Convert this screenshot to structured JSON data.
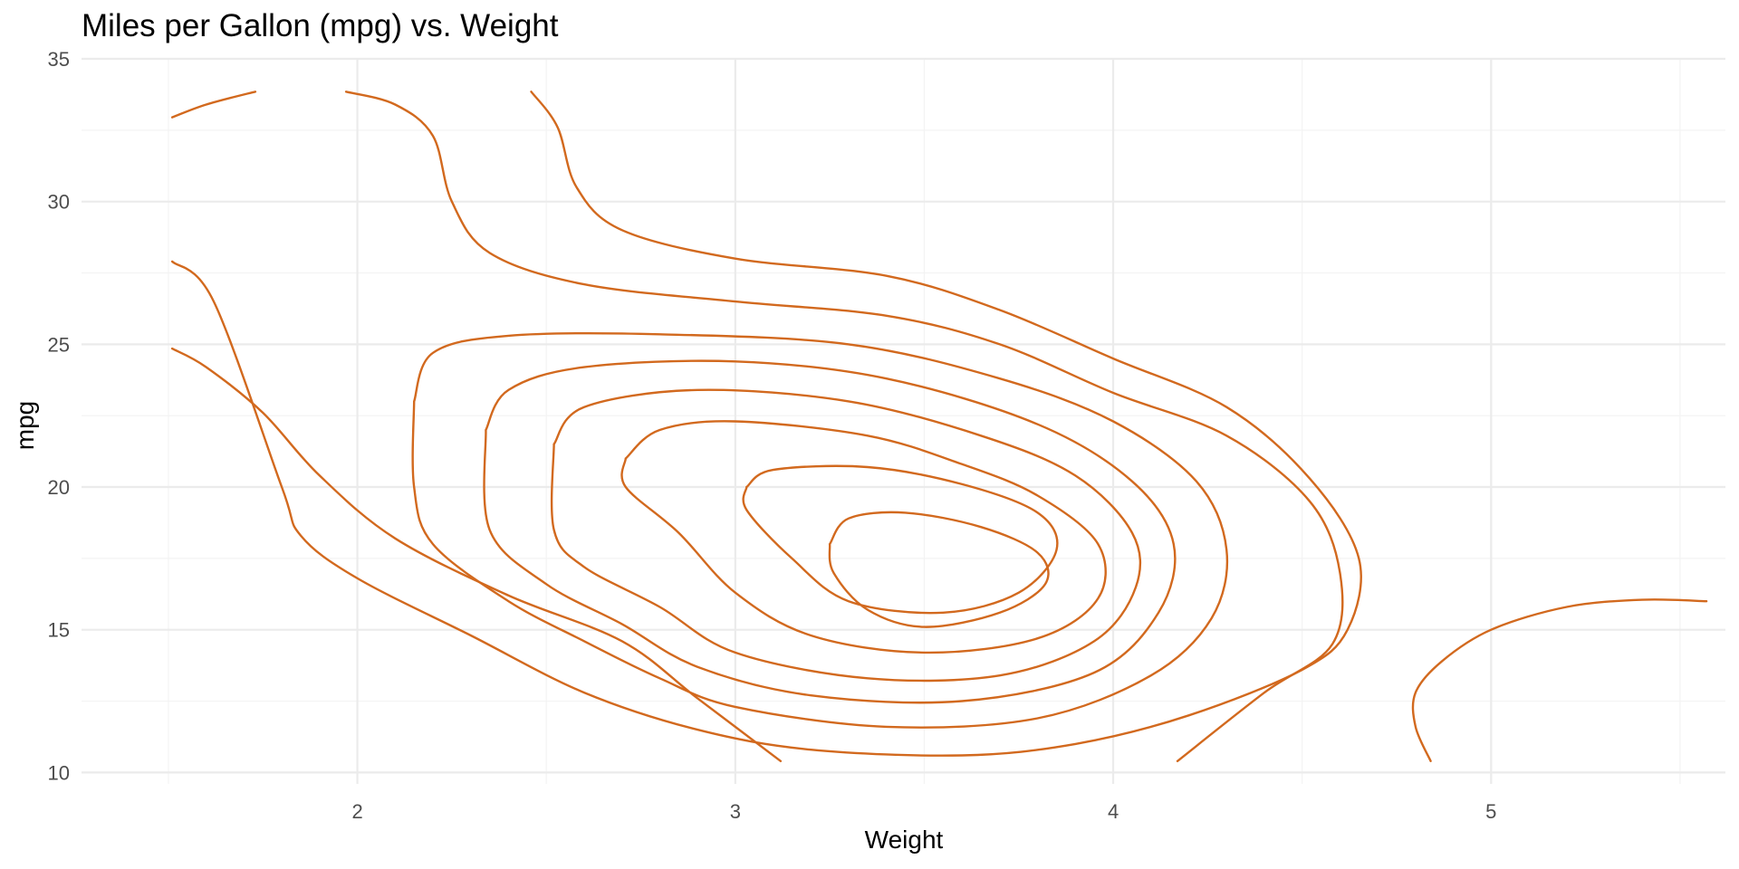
{
  "chart_data": {
    "type": "contour",
    "title": "Miles per Gallon (mpg) vs. Weight",
    "xlabel": "Weight",
    "ylabel": "mpg",
    "xlim": [
      1.27,
      5.62
    ],
    "ylim": [
      9.6,
      35.0
    ],
    "x_ticks": [
      2,
      3,
      4,
      5
    ],
    "y_ticks": [
      10,
      15,
      20,
      25,
      30,
      35
    ],
    "x_minor": [
      1.5,
      2.5,
      3.5,
      4.5,
      5.5
    ],
    "y_minor": [
      12.5,
      17.5,
      22.5,
      27.5,
      32.5
    ],
    "grid": true,
    "line_color": "#D2691E",
    "series": [
      {
        "points": [
          [
            1.51,
            32.95
          ],
          [
            1.6,
            33.4
          ],
          [
            1.73,
            33.85
          ]
        ]
      },
      {
        "points": [
          [
            1.97,
            33.85
          ],
          [
            2.1,
            33.4
          ],
          [
            2.2,
            32.3
          ],
          [
            2.25,
            30.0
          ],
          [
            2.35,
            28.2
          ],
          [
            2.6,
            27.1
          ],
          [
            3.0,
            26.5
          ],
          [
            3.4,
            26.0
          ],
          [
            3.7,
            25.0
          ],
          [
            4.0,
            23.3
          ],
          [
            4.3,
            21.8
          ],
          [
            4.52,
            19.5
          ],
          [
            4.6,
            17.0
          ],
          [
            4.58,
            14.5
          ],
          [
            4.4,
            12.8
          ],
          [
            4.17,
            10.4
          ]
        ]
      },
      {
        "points": [
          [
            2.46,
            33.85
          ],
          [
            2.53,
            32.6
          ],
          [
            2.58,
            30.5
          ],
          [
            2.7,
            29.0
          ],
          [
            3.0,
            28.0
          ],
          [
            3.4,
            27.4
          ],
          [
            3.7,
            26.2
          ],
          [
            4.0,
            24.5
          ],
          [
            4.3,
            22.8
          ],
          [
            4.52,
            20.3
          ],
          [
            4.65,
            17.5
          ],
          [
            4.62,
            15.0
          ],
          [
            4.5,
            13.6
          ],
          [
            4.2,
            12.0
          ],
          [
            3.9,
            11.0
          ],
          [
            3.6,
            10.6
          ],
          [
            3.2,
            10.8
          ],
          [
            2.9,
            11.5
          ],
          [
            2.6,
            12.8
          ],
          [
            2.3,
            14.8
          ],
          [
            2.0,
            16.8
          ],
          [
            1.85,
            18.3
          ],
          [
            1.8,
            20.0
          ],
          [
            1.62,
            26.5
          ],
          [
            1.51,
            27.9
          ]
        ]
      },
      {
        "points": [
          [
            1.51,
            24.85
          ],
          [
            1.6,
            24.2
          ],
          [
            1.75,
            22.6
          ],
          [
            1.9,
            20.4
          ],
          [
            2.1,
            18.2
          ],
          [
            2.4,
            16.2
          ],
          [
            2.7,
            14.6
          ],
          [
            2.9,
            12.6
          ],
          [
            3.12,
            10.4
          ]
        ]
      },
      {
        "points": [
          [
            2.15,
            23.0
          ],
          [
            2.2,
            24.7
          ],
          [
            2.4,
            25.3
          ],
          [
            2.8,
            25.35
          ],
          [
            3.3,
            25.0
          ],
          [
            3.7,
            23.8
          ],
          [
            4.0,
            22.3
          ],
          [
            4.22,
            20.2
          ],
          [
            4.3,
            17.8
          ],
          [
            4.26,
            15.4
          ],
          [
            4.1,
            13.4
          ],
          [
            3.8,
            11.9
          ],
          [
            3.4,
            11.6
          ],
          [
            3.0,
            12.3
          ],
          [
            2.8,
            13.3
          ],
          [
            2.6,
            14.6
          ],
          [
            2.4,
            16.0
          ],
          [
            2.2,
            18.0
          ],
          [
            2.15,
            20.0
          ],
          [
            2.15,
            23.0
          ]
        ]
      },
      {
        "points": [
          [
            2.34,
            22.0
          ],
          [
            2.4,
            23.4
          ],
          [
            2.6,
            24.2
          ],
          [
            3.0,
            24.4
          ],
          [
            3.4,
            23.8
          ],
          [
            3.8,
            22.2
          ],
          [
            4.05,
            20.2
          ],
          [
            4.16,
            18.0
          ],
          [
            4.12,
            15.6
          ],
          [
            3.95,
            13.5
          ],
          [
            3.6,
            12.5
          ],
          [
            3.2,
            12.7
          ],
          [
            2.9,
            13.7
          ],
          [
            2.7,
            15.2
          ],
          [
            2.5,
            16.6
          ],
          [
            2.35,
            18.5
          ],
          [
            2.34,
            22.0
          ]
        ]
      },
      {
        "points": [
          [
            2.52,
            21.5
          ],
          [
            2.6,
            22.8
          ],
          [
            2.9,
            23.4
          ],
          [
            3.3,
            23.0
          ],
          [
            3.65,
            21.8
          ],
          [
            3.9,
            20.4
          ],
          [
            4.05,
            18.4
          ],
          [
            4.06,
            16.5
          ],
          [
            3.95,
            14.6
          ],
          [
            3.7,
            13.4
          ],
          [
            3.35,
            13.3
          ],
          [
            3.0,
            14.2
          ],
          [
            2.8,
            15.8
          ],
          [
            2.6,
            17.2
          ],
          [
            2.52,
            18.5
          ],
          [
            2.52,
            21.5
          ]
        ]
      },
      {
        "points": [
          [
            2.71,
            21.0
          ],
          [
            2.8,
            22.0
          ],
          [
            3.0,
            22.3
          ],
          [
            3.35,
            21.8
          ],
          [
            3.6,
            20.8
          ],
          [
            3.8,
            19.7
          ],
          [
            3.96,
            18.0
          ],
          [
            3.96,
            16.1
          ],
          [
            3.8,
            14.7
          ],
          [
            3.5,
            14.2
          ],
          [
            3.2,
            14.8
          ],
          [
            3.0,
            16.3
          ],
          [
            2.85,
            18.4
          ],
          [
            2.71,
            20.0
          ],
          [
            2.71,
            21.0
          ]
        ]
      },
      {
        "points": [
          [
            3.03,
            20.0
          ],
          [
            3.1,
            20.6
          ],
          [
            3.35,
            20.7
          ],
          [
            3.6,
            20.1
          ],
          [
            3.8,
            19.1
          ],
          [
            3.85,
            17.8
          ],
          [
            3.75,
            16.3
          ],
          [
            3.55,
            15.6
          ],
          [
            3.3,
            16.0
          ],
          [
            3.15,
            17.5
          ],
          [
            3.03,
            19.2
          ],
          [
            3.03,
            20.0
          ]
        ]
      },
      {
        "points": [
          [
            3.25,
            18.0
          ],
          [
            3.3,
            18.9
          ],
          [
            3.45,
            19.1
          ],
          [
            3.65,
            18.6
          ],
          [
            3.8,
            17.7
          ],
          [
            3.82,
            16.6
          ],
          [
            3.7,
            15.6
          ],
          [
            3.5,
            15.1
          ],
          [
            3.35,
            15.7
          ],
          [
            3.26,
            17.0
          ],
          [
            3.25,
            18.0
          ]
        ]
      },
      {
        "points": [
          [
            4.84,
            10.4
          ],
          [
            4.8,
            11.6
          ],
          [
            4.8,
            12.8
          ],
          [
            4.87,
            13.9
          ],
          [
            5.0,
            15.0
          ],
          [
            5.2,
            15.8
          ],
          [
            5.4,
            16.05
          ],
          [
            5.57,
            16.0
          ]
        ]
      }
    ]
  }
}
